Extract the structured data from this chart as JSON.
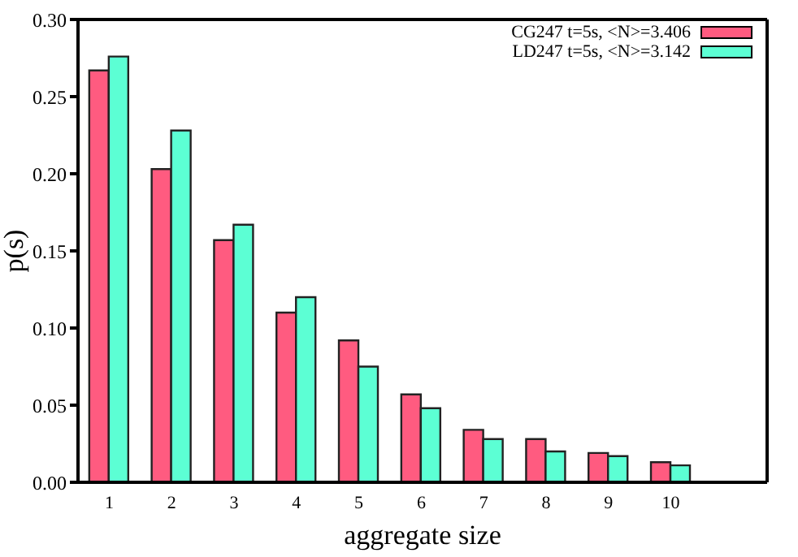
{
  "chart_data": {
    "type": "bar",
    "xlabel": "aggregate size",
    "ylabel": "p(s)",
    "categories": [
      "1",
      "2",
      "3",
      "4",
      "5",
      "6",
      "7",
      "8",
      "9",
      "10"
    ],
    "series": [
      {
        "name": "CG247 t=5s, <N>=3.406",
        "color": "#ff5b80",
        "values": [
          0.267,
          0.203,
          0.157,
          0.11,
          0.092,
          0.057,
          0.034,
          0.028,
          0.019,
          0.013
        ]
      },
      {
        "name": "LD247 t=5s, <N>=3.142",
        "color": "#5cffd4",
        "values": [
          0.276,
          0.228,
          0.167,
          0.12,
          0.075,
          0.048,
          0.028,
          0.02,
          0.017,
          0.011
        ]
      }
    ],
    "ylim": [
      0,
      0.3
    ],
    "yticks": [
      {
        "value": 0,
        "label": "0.00"
      },
      {
        "value": 0.05,
        "label": "0.05"
      },
      {
        "value": 0.1,
        "label": "0.10"
      },
      {
        "value": 0.15,
        "label": "0.15"
      },
      {
        "value": 0.2,
        "label": "0.20"
      },
      {
        "value": 0.25,
        "label": "0.25"
      },
      {
        "value": 0.3,
        "label": "0.30"
      }
    ],
    "grid": false,
    "legend": "top right"
  }
}
